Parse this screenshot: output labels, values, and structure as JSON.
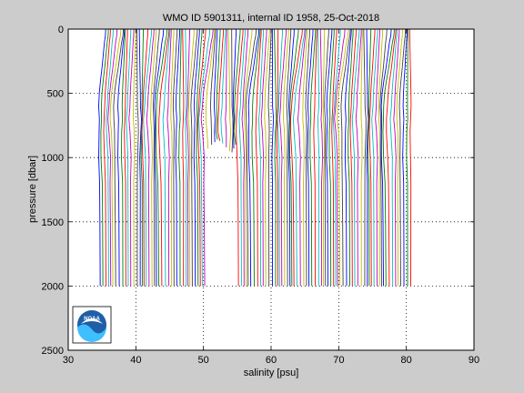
{
  "chart_data": {
    "type": "line",
    "title": "WMO ID 5901311, internal ID 1958, 25-Oct-2018",
    "xlabel": "salinity [psu]",
    "ylabel": "pressure [dbar]",
    "xlim": [
      30,
      90
    ],
    "ylim": [
      0,
      2500
    ],
    "y_reversed": true,
    "grid": true,
    "x_ticks": [
      30,
      40,
      50,
      60,
      70,
      80,
      90
    ],
    "y_ticks": [
      0,
      500,
      1000,
      1500,
      2000,
      2500
    ],
    "x_tick_labels": [
      "30",
      "40",
      "50",
      "60",
      "70",
      "80",
      "90"
    ],
    "y_tick_labels": [
      "0",
      "500",
      "1000",
      "1500",
      "2000",
      "2500"
    ],
    "waterfall": {
      "first_offset": 35.0,
      "step": 0.4,
      "profile_count": 115,
      "gap_profiles": [
        40,
        41,
        42,
        43,
        44,
        45,
        46,
        47,
        48,
        49,
        50
      ],
      "shallow_profiles": {
        "40": 930,
        "41": 900,
        "42": 880,
        "43": 860,
        "44": 870,
        "45": 890,
        "46": 920,
        "47": 950,
        "48": 960,
        "49": 930,
        "50": 900
      }
    },
    "representative_profile": {
      "pressure": [
        0,
        50,
        100,
        200,
        300,
        400,
        500,
        600,
        700,
        800,
        1000,
        1200,
        1500,
        1800,
        2000
      ],
      "salinity_offset": [
        0.6,
        0.55,
        0.4,
        0.2,
        0.0,
        -0.25,
        -0.45,
        -0.55,
        -0.6,
        -0.55,
        -0.45,
        -0.4,
        -0.35,
        -0.32,
        -0.3
      ]
    },
    "colors": [
      "#0000ff",
      "#008000",
      "#ff0000",
      "#00bfbf",
      "#bf00bf",
      "#bfbf00",
      "#404040"
    ]
  },
  "logo": {
    "name": "noaa-logo",
    "text": "NOAA"
  }
}
